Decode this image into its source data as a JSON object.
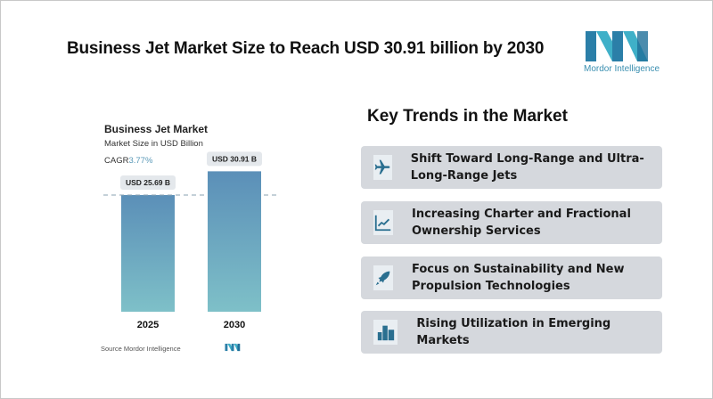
{
  "header": {
    "title": "Business Jet Market Size to Reach USD 30.91 billion by 2030",
    "logo_text": "Mordor Intelligence"
  },
  "chart_data": {
    "type": "bar",
    "title": "Business Jet Market",
    "subtitle": "Market Size in USD Billion",
    "cagr_label": "CAGR",
    "cagr_value": "3.77%",
    "categories": [
      "2025",
      "2030"
    ],
    "values": [
      25.69,
      30.91
    ],
    "data_labels": [
      "USD 25.69 B",
      "USD 30.91 B"
    ],
    "colors": {
      "bar_top": "#5b8fb8",
      "bar_bottom": "#7ec0c8"
    },
    "source": "Source Mordor Intelligence"
  },
  "trends": {
    "title": "Key Trends in the Market",
    "items": [
      {
        "icon": "airplane-icon",
        "label": "Shift Toward Long-Range and Ultra-Long-Range Jets"
      },
      {
        "icon": "growth-chart-icon",
        "label": "Increasing Charter and Fractional Ownership Services"
      },
      {
        "icon": "rocket-icon",
        "label": "Focus on Sustainability and New Propulsion Technologies"
      },
      {
        "icon": "city-buildings-icon",
        "label": "Rising Utilization in Emerging Markets"
      }
    ]
  }
}
